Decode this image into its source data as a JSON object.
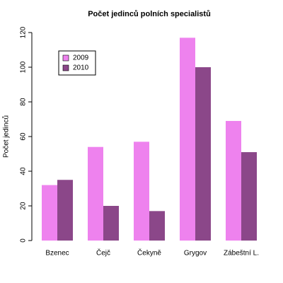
{
  "chart_data": {
    "type": "bar",
    "title": "Počet jedinců polních specialistů",
    "y_label": "Počet jedinců",
    "categories": [
      "Bzenec",
      "Čejč",
      "Čekyně",
      "Grygov",
      "Zábeštní L."
    ],
    "series": [
      {
        "name": "2009",
        "color": "#ee82ee",
        "values": [
          32,
          54,
          57,
          117,
          69
        ]
      },
      {
        "name": "2010",
        "color": "#8b4789",
        "values": [
          35,
          20,
          17,
          100,
          51
        ]
      }
    ],
    "ylim": [
      0,
      120
    ],
    "yticks": [
      0,
      20,
      40,
      60,
      80,
      100,
      120
    ],
    "grid": false,
    "legend": "top-left"
  }
}
